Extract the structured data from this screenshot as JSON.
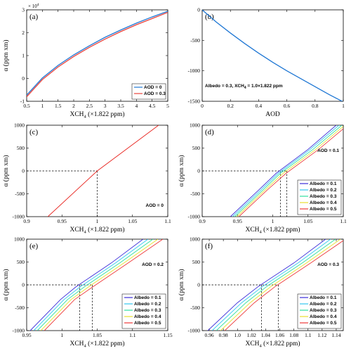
{
  "colors": {
    "aod0": "#1f77d4",
    "aod03": "#e8433c",
    "albedo": [
      "#3a2bd8",
      "#33c6f0",
      "#2ee0a0",
      "#e8e030",
      "#ee3a3a"
    ],
    "single": "#e8231e",
    "frame": "#000000",
    "guide": "#000000"
  },
  "chart_data": [
    {
      "id": "a",
      "panel_label": "(a)",
      "type": "line",
      "xlabel": "XCH4 (×1.822 ppm)",
      "ylabel": "α (ppm xm)",
      "y_multiplier": "× 10^4",
      "xlim": [
        0.5,
        5
      ],
      "ylim": [
        -1,
        3
      ],
      "xticks": [
        "0.5",
        "1",
        "1.5",
        "2",
        "2.5",
        "3",
        "3.5",
        "4",
        "4.5",
        "5"
      ],
      "yticks": [
        "-1",
        "0",
        "1",
        "2",
        "3"
      ],
      "legend_position": "lower-right",
      "series": [
        {
          "name": "AOD = 0",
          "x": [
            0.5,
            1,
            1.5,
            2,
            2.5,
            3,
            3.5,
            4,
            4.5,
            5
          ],
          "y": [
            -0.73,
            0.02,
            0.57,
            1.03,
            1.43,
            1.8,
            2.12,
            2.42,
            2.69,
            2.94
          ]
        },
        {
          "name": "AOD = 0.3",
          "x": [
            0.5,
            1,
            1.5,
            2,
            2.5,
            3,
            3.5,
            4,
            4.5,
            5
          ],
          "y": [
            -0.8,
            -0.05,
            0.5,
            0.96,
            1.36,
            1.72,
            2.05,
            2.35,
            2.62,
            2.89
          ]
        }
      ]
    },
    {
      "id": "b",
      "panel_label": "(b)",
      "type": "line",
      "xlabel": "AOD",
      "ylabel": "",
      "annotation": "Albedo = 0.3, XCH4 = 1.0×1.822 ppm",
      "xlim": [
        0,
        1
      ],
      "ylim": [
        -1500,
        0
      ],
      "xticks": [
        "0",
        "0.2",
        "0.4",
        "0.6",
        "0.8",
        "1"
      ],
      "yticks": [
        "-1500",
        "-1000",
        "-500",
        "0"
      ],
      "series": [
        {
          "x": [
            0,
            0.1,
            0.2,
            0.3,
            0.4,
            0.5,
            0.6,
            0.7,
            0.8,
            0.9,
            1.0
          ],
          "y": [
            0,
            -200,
            -380,
            -550,
            -710,
            -860,
            -1000,
            -1130,
            -1260,
            -1390,
            -1510
          ]
        }
      ]
    },
    {
      "id": "c",
      "panel_label": "(c)",
      "type": "line",
      "xlabel": "XCH4 (×1.822 ppm)",
      "ylabel": "α (ppm xm)",
      "annotation": "AOD = 0",
      "xlim": [
        0.9,
        1.1
      ],
      "ylim": [
        -1000,
        1000
      ],
      "xticks": [
        "0.9",
        "0.95",
        "1",
        "1.05",
        "1.1"
      ],
      "yticks": [
        "-1000",
        "-500",
        "0",
        "500",
        "1000"
      ],
      "guide_x": [
        1.0
      ],
      "series": [
        {
          "x": [
            0.93,
            1.0,
            1.087
          ],
          "y": [
            -1000,
            0,
            1000
          ]
        }
      ]
    },
    {
      "id": "d",
      "panel_label": "(d)",
      "type": "line",
      "xlabel": "XCH4 (×1.822 ppm)",
      "ylabel": "α (ppm xm)",
      "annotation": "AOD = 0.1",
      "xlim": [
        0.9,
        1.1
      ],
      "ylim": [
        -1000,
        1000
      ],
      "xticks": [
        "0.9",
        "0.95",
        "1",
        "1.05",
        "1.1"
      ],
      "yticks": [
        "-1000",
        "-500",
        "0",
        "500",
        "1000"
      ],
      "guide_x": [
        1.011,
        1.02
      ],
      "series": [
        {
          "name": "Albedo = 0.1",
          "x": [
            0.94,
            0.98,
            1.005,
            1.05,
            1.09
          ],
          "y": [
            -1000,
            -420,
            -50,
            470,
            1000
          ]
        },
        {
          "name": "Albedo = 0.2",
          "x": [
            0.943,
            0.983,
            1.008,
            1.053,
            1.094
          ],
          "y": [
            -1000,
            -420,
            -50,
            470,
            1000
          ]
        },
        {
          "name": "Albedo = 0.3",
          "x": [
            0.946,
            0.986,
            1.011,
            1.057,
            1.098
          ],
          "y": [
            -1000,
            -420,
            -50,
            470,
            1000
          ]
        },
        {
          "name": "Albedo = 0.4",
          "x": [
            0.949,
            0.989,
            1.015,
            1.061,
            1.102
          ],
          "y": [
            -1000,
            -420,
            -50,
            470,
            1000
          ]
        },
        {
          "name": "Albedo = 0.5",
          "x": [
            0.952,
            0.992,
            1.019,
            1.065,
            1.106
          ],
          "y": [
            -1000,
            -420,
            -50,
            470,
            1000
          ]
        }
      ]
    },
    {
      "id": "e",
      "panel_label": "(e)",
      "type": "line",
      "xlabel": "XCH4 (×1.822 ppm)",
      "ylabel": "α (ppm xm)",
      "annotation": "AOD = 0.2",
      "xlim": [
        0.95,
        1.15
      ],
      "ylim": [
        -1000,
        1000
      ],
      "xticks": [
        "0.95",
        "1",
        "1.05",
        "1.1",
        "1.15"
      ],
      "yticks": [
        "-1000",
        "-500",
        "0",
        "500",
        "1000"
      ],
      "guide_x": [
        1.025,
        1.043
      ],
      "series": [
        {
          "name": "Albedo = 0.1",
          "x": [
            0.955,
            0.998,
            1.02,
            1.07,
            1.115
          ],
          "y": [
            -1000,
            -320,
            -40,
            480,
            1000
          ]
        },
        {
          "name": "Albedo = 0.2",
          "x": [
            0.96,
            1.003,
            1.026,
            1.076,
            1.122
          ],
          "y": [
            -1000,
            -320,
            -40,
            480,
            1000
          ]
        },
        {
          "name": "Albedo = 0.3",
          "x": [
            0.965,
            1.008,
            1.032,
            1.082,
            1.129
          ],
          "y": [
            -1000,
            -320,
            -40,
            480,
            1000
          ]
        },
        {
          "name": "Albedo = 0.4",
          "x": [
            0.97,
            1.013,
            1.038,
            1.088,
            1.136
          ],
          "y": [
            -1000,
            -320,
            -40,
            480,
            1000
          ]
        },
        {
          "name": "Albedo = 0.5",
          "x": [
            0.975,
            1.018,
            1.044,
            1.094,
            1.143
          ],
          "y": [
            -1000,
            -320,
            -40,
            480,
            1000
          ]
        }
      ]
    },
    {
      "id": "f",
      "panel_label": "(f)",
      "type": "line",
      "xlabel": "XCH4 (×1.822 ppm)",
      "ylabel": "α (ppm xm)",
      "annotation": "AOD = 0.3",
      "xlim": [
        0.95,
        1.15
      ],
      "ylim": [
        -1000,
        1000
      ],
      "xticks": [
        "0.96",
        "0.98",
        "1.0",
        "1.02",
        "1.04",
        "1.06",
        "1.08",
        "1.1",
        "1.12",
        "1.14"
      ],
      "yticks": [
        "-1000",
        "-500",
        "0",
        "500",
        "1000"
      ],
      "guide_x": [
        1.034,
        1.058
      ],
      "series": [
        {
          "name": "Albedo = 0.1",
          "x": [
            0.958,
            1.0,
            1.03,
            1.08,
            1.125
          ],
          "y": [
            -1000,
            -390,
            -30,
            480,
            1000
          ]
        },
        {
          "name": "Albedo = 0.2",
          "x": [
            0.964,
            1.006,
            1.036,
            1.086,
            1.132
          ],
          "y": [
            -1000,
            -390,
            -30,
            480,
            1000
          ]
        },
        {
          "name": "Albedo = 0.3",
          "x": [
            0.97,
            1.012,
            1.042,
            1.092,
            1.139
          ],
          "y": [
            -1000,
            -390,
            -30,
            480,
            1000
          ]
        },
        {
          "name": "Albedo = 0.4",
          "x": [
            0.976,
            1.018,
            1.048,
            1.098,
            1.146
          ],
          "y": [
            -1000,
            -390,
            -30,
            480,
            1000
          ]
        },
        {
          "name": "Albedo = 0.5",
          "x": [
            0.982,
            1.024,
            1.054,
            1.104,
            1.153
          ],
          "y": [
            -1000,
            -390,
            -30,
            480,
            1000
          ]
        }
      ]
    }
  ]
}
